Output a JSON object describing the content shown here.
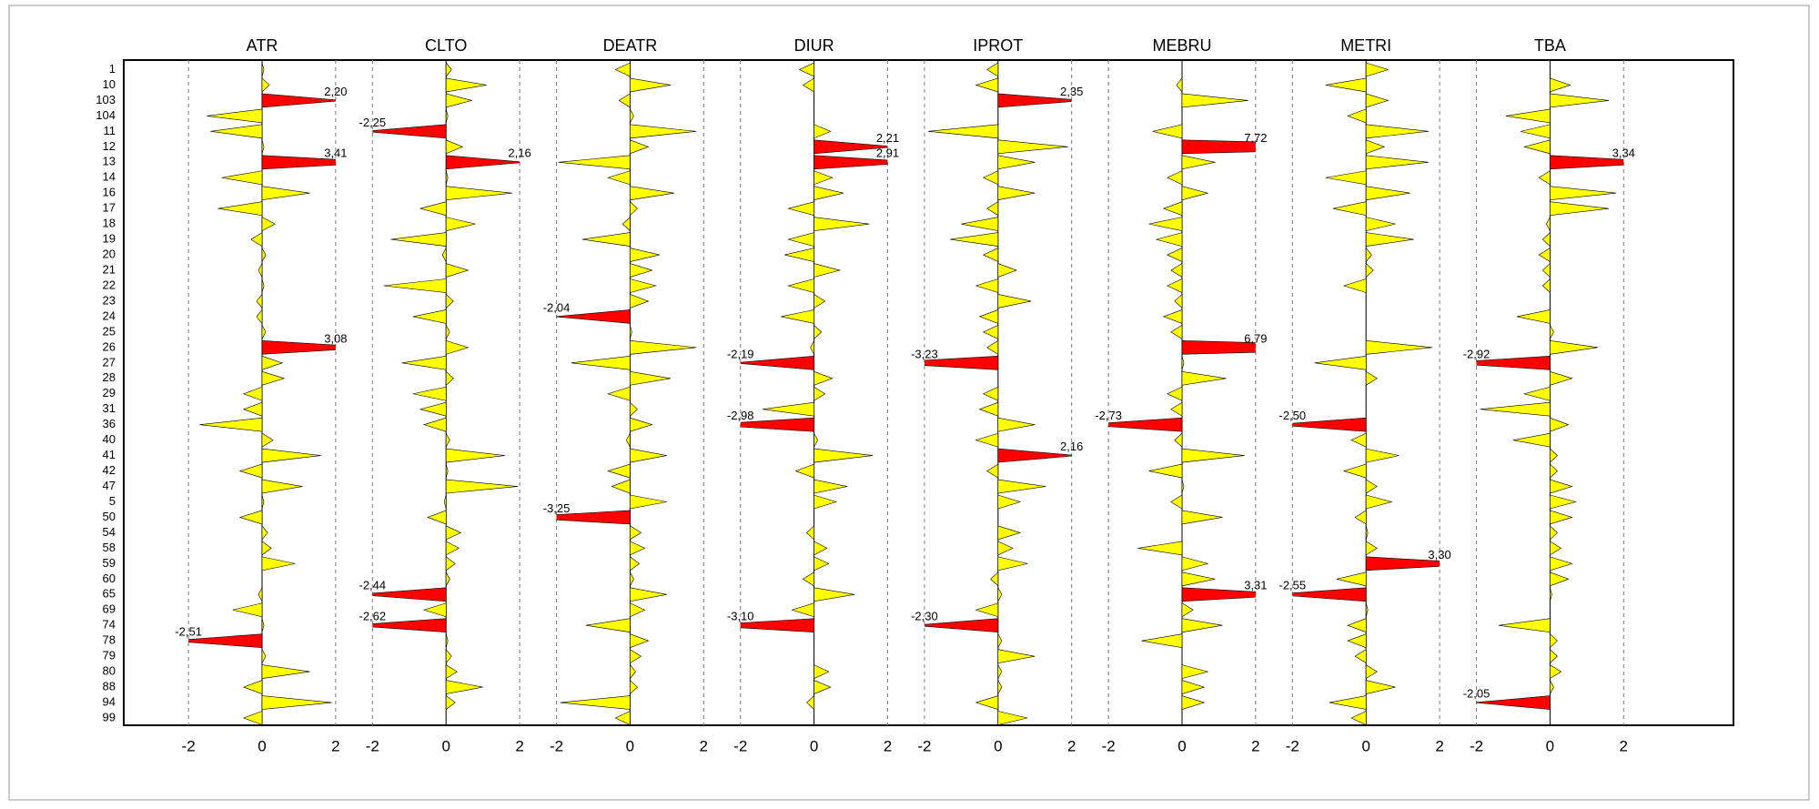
{
  "chart_data": {
    "type": "spike",
    "categories": [
      "1",
      "10",
      "103",
      "104",
      "11",
      "12",
      "13",
      "14",
      "16",
      "17",
      "18",
      "19",
      "20",
      "21",
      "22",
      "23",
      "24",
      "25",
      "26",
      "27",
      "28",
      "29",
      "31",
      "36",
      "40",
      "41",
      "42",
      "47",
      "5",
      "50",
      "54",
      "58",
      "59",
      "60",
      "65",
      "69",
      "74",
      "78",
      "79",
      "80",
      "88",
      "94",
      "99"
    ],
    "color": "#ffff00",
    "highlight_color": "#ff0000",
    "xlim": [
      -2.5,
      2.5
    ],
    "xticks": [
      -2,
      0,
      2
    ],
    "grid": true,
    "series": [
      {
        "name": "ATR",
        "values": [
          0.05,
          0.2,
          2.2,
          -1.5,
          -1.4,
          0.05,
          3.41,
          -1.1,
          1.3,
          -1.2,
          0.35,
          -0.3,
          0.1,
          -0.1,
          0.05,
          -0.15,
          -0.15,
          0.1,
          3.08,
          0.55,
          0.6,
          -0.5,
          -0.5,
          -1.7,
          0.3,
          1.6,
          -0.6,
          1.1,
          0.05,
          -0.6,
          0.15,
          0.25,
          0.9,
          0,
          -0.1,
          -0.8,
          0.05,
          -2.51,
          0.1,
          1.3,
          -0.5,
          1.9,
          -0.5
        ],
        "value_labels": [
          null,
          null,
          "2,20",
          null,
          null,
          null,
          "3,41",
          null,
          null,
          null,
          null,
          null,
          null,
          null,
          null,
          null,
          null,
          null,
          "3,08",
          null,
          null,
          null,
          null,
          null,
          null,
          null,
          null,
          null,
          null,
          null,
          null,
          null,
          null,
          null,
          null,
          null,
          null,
          "-2,51",
          null,
          null,
          null,
          null,
          null
        ]
      },
      {
        "name": "CLTO",
        "values": [
          0.15,
          1.1,
          0.7,
          0.05,
          -2.25,
          0.45,
          2.16,
          0.05,
          1.8,
          -0.7,
          0.8,
          -1.5,
          -0.1,
          0.6,
          -1.7,
          0.2,
          -0.9,
          0.1,
          0.6,
          -1.2,
          0.2,
          -0.9,
          -0.7,
          -0.6,
          0.1,
          1.6,
          0.05,
          1.95,
          -0.05,
          -0.5,
          0.4,
          0.35,
          0.25,
          0.1,
          -2.44,
          -0.6,
          -2.62,
          0.05,
          0.15,
          0.3,
          1.0,
          0.25,
          0
        ],
        "value_labels": [
          null,
          null,
          null,
          null,
          "-2,25",
          null,
          "2,16",
          null,
          null,
          null,
          null,
          null,
          null,
          null,
          null,
          null,
          null,
          null,
          null,
          null,
          null,
          null,
          null,
          null,
          null,
          null,
          null,
          null,
          null,
          null,
          null,
          null,
          null,
          null,
          "-2,44",
          null,
          "-2,62",
          null,
          null,
          null,
          null,
          null,
          null
        ]
      },
      {
        "name": "DEATR",
        "values": [
          -0.4,
          1.1,
          -0.3,
          0.1,
          1.8,
          0.5,
          -1.95,
          -0.6,
          1.2,
          0.2,
          -0.2,
          -1.3,
          0.8,
          0.6,
          0.7,
          0.5,
          -2.04,
          0.05,
          1.8,
          -1.6,
          1.1,
          -0.6,
          0.2,
          0.6,
          -0.1,
          1.0,
          -0.6,
          -0.5,
          1.0,
          -3.25,
          0.3,
          0.4,
          0.25,
          0.1,
          1.0,
          0.4,
          -1.2,
          0.5,
          0.3,
          0.15,
          0.2,
          -1.9,
          -0.4
        ],
        "value_labels": [
          null,
          null,
          null,
          null,
          null,
          null,
          null,
          null,
          null,
          null,
          null,
          null,
          null,
          null,
          null,
          null,
          "-2,04",
          null,
          null,
          null,
          null,
          null,
          null,
          null,
          null,
          null,
          null,
          null,
          null,
          "-3,25",
          null,
          null,
          null,
          null,
          null,
          null,
          null,
          null,
          null,
          null,
          null,
          null,
          null
        ]
      },
      {
        "name": "DIUR",
        "values": [
          -0.4,
          -0.3,
          0,
          0,
          0.45,
          2.21,
          2.91,
          0.5,
          0.8,
          -0.7,
          1.5,
          -0.7,
          -0.8,
          0.7,
          -0.7,
          0.3,
          -0.9,
          0.2,
          -0.1,
          -2.19,
          0.5,
          0.3,
          -1.4,
          -2.98,
          0.1,
          1.6,
          -0.5,
          0.9,
          0.6,
          0,
          -0.2,
          0.35,
          0.4,
          -0.3,
          1.1,
          -0.6,
          -3.1,
          0,
          0,
          0.4,
          0.45,
          -0.2,
          0
        ],
        "value_labels": [
          null,
          null,
          null,
          null,
          null,
          "2,21",
          "2,91",
          null,
          null,
          null,
          null,
          null,
          null,
          null,
          null,
          null,
          null,
          null,
          null,
          "-2,19",
          null,
          null,
          null,
          "-2,98",
          null,
          null,
          null,
          null,
          null,
          null,
          null,
          null,
          null,
          null,
          null,
          null,
          "-3,10",
          null,
          null,
          null,
          null,
          null,
          null
        ]
      },
      {
        "name": "IPROT",
        "values": [
          -0.3,
          -0.6,
          2.35,
          0,
          -1.9,
          1.9,
          1.0,
          -0.4,
          1.0,
          -0.3,
          -1.0,
          -1.3,
          -0.4,
          0.5,
          -0.6,
          0.9,
          -0.5,
          -0.4,
          -0.3,
          -3.23,
          0,
          -0.4,
          -0.5,
          1.0,
          -0.6,
          2.16,
          -0.3,
          1.3,
          0.6,
          0,
          0.6,
          0.4,
          0.8,
          -0.2,
          0.1,
          -0.6,
          -2.3,
          0.1,
          1.0,
          0.1,
          0.1,
          -0.6,
          0.8
        ],
        "value_labels": [
          null,
          null,
          "2,35",
          null,
          null,
          null,
          null,
          null,
          null,
          null,
          null,
          null,
          null,
          null,
          null,
          null,
          null,
          null,
          null,
          "-3,23",
          null,
          null,
          null,
          null,
          null,
          "2,16",
          null,
          null,
          null,
          null,
          null,
          null,
          null,
          null,
          null,
          null,
          "-2,30",
          null,
          null,
          null,
          null,
          null,
          null
        ]
      },
      {
        "name": "MEBRU",
        "values": [
          0,
          -0.15,
          1.8,
          0,
          -0.8,
          7.72,
          0.9,
          -0.4,
          0.7,
          -0.5,
          -0.9,
          -0.7,
          -0.4,
          -0.3,
          -0.4,
          -0.2,
          -0.5,
          -0.3,
          6.79,
          0.05,
          1.2,
          -0.4,
          -0.3,
          -2.73,
          -0.2,
          1.7,
          -0.9,
          0.05,
          -0.3,
          1.1,
          0,
          -1.2,
          0.7,
          0.9,
          3.31,
          0.3,
          1.1,
          -1.1,
          0,
          0.7,
          0.6,
          0.6,
          0
        ],
        "value_labels": [
          null,
          null,
          null,
          null,
          null,
          "7,72",
          null,
          null,
          null,
          null,
          null,
          null,
          null,
          null,
          null,
          null,
          null,
          null,
          "6,79",
          null,
          null,
          null,
          null,
          "-2,73",
          null,
          null,
          null,
          null,
          null,
          null,
          null,
          null,
          null,
          null,
          "3,31",
          null,
          null,
          null,
          null,
          null,
          null,
          null,
          null
        ]
      },
      {
        "name": "METRI",
        "values": [
          0.6,
          -1.1,
          0.6,
          -0.5,
          1.7,
          0.5,
          1.7,
          -1.1,
          1.2,
          -0.9,
          0.8,
          1.3,
          0.15,
          0.2,
          -0.6,
          0,
          0,
          0,
          1.8,
          -1.4,
          0.3,
          0,
          0,
          -2.5,
          -0.4,
          0.9,
          -0.6,
          0.3,
          0.7,
          -0.3,
          0.05,
          0.3,
          3.3,
          -0.8,
          -2.55,
          0.05,
          -0.5,
          -0.5,
          -0.3,
          0.3,
          0.8,
          -1.0,
          -0.4
        ],
        "value_labels": [
          null,
          null,
          null,
          null,
          null,
          null,
          null,
          null,
          null,
          null,
          null,
          null,
          null,
          null,
          null,
          null,
          null,
          null,
          null,
          null,
          null,
          null,
          null,
          "-2,50",
          null,
          null,
          null,
          null,
          null,
          null,
          null,
          null,
          "3,30",
          null,
          "-2,55",
          null,
          null,
          null,
          null,
          null,
          null,
          null,
          null
        ]
      },
      {
        "name": "TBA",
        "values": [
          0,
          0.55,
          1.6,
          -1.2,
          -0.8,
          -0.7,
          3.34,
          -0.3,
          1.8,
          1.6,
          -0.1,
          -0.2,
          -0.3,
          -0.2,
          -0.2,
          0,
          -0.9,
          0.1,
          1.3,
          -2.92,
          0.6,
          -0.7,
          -1.9,
          0.5,
          -1.0,
          0.2,
          0.2,
          0.6,
          0.7,
          0.6,
          0.2,
          0.3,
          0.6,
          0.5,
          0.05,
          0,
          -1.4,
          0.2,
          0.2,
          0.3,
          0.1,
          -2.05,
          0
        ],
        "value_labels": [
          null,
          null,
          null,
          null,
          null,
          null,
          "3,34",
          null,
          null,
          null,
          null,
          null,
          null,
          null,
          null,
          null,
          null,
          null,
          null,
          "-2,92",
          null,
          null,
          null,
          null,
          null,
          null,
          null,
          null,
          null,
          null,
          null,
          null,
          null,
          null,
          null,
          null,
          null,
          null,
          null,
          null,
          null,
          "-2,05",
          null
        ]
      }
    ]
  }
}
